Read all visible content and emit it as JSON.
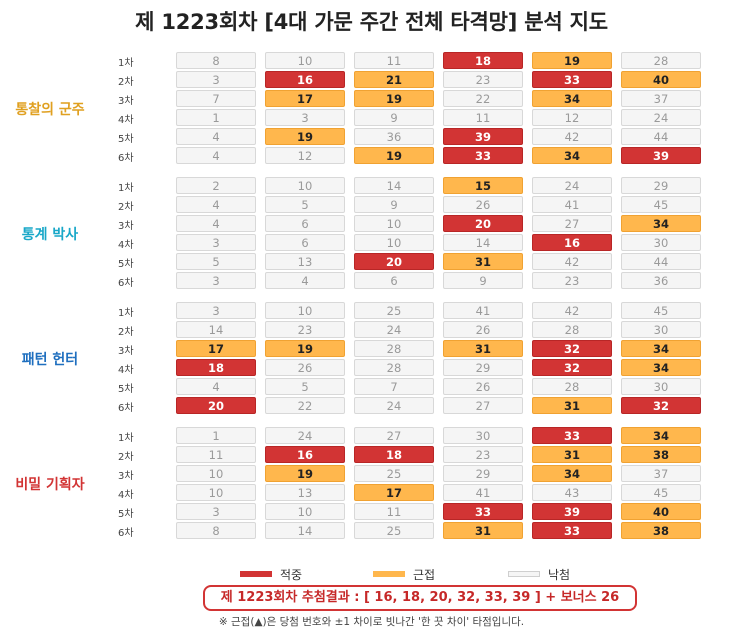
{
  "title": "제 1223회차 [4대 가문 주간 전체 타격망] 분석 지도",
  "colors": {
    "hit": "#d23434",
    "near": "#ffb74d",
    "miss": "#f5f5f5"
  },
  "groups": [
    {
      "name": "통찰의 군주",
      "color": "#e0a020",
      "rows": [
        {
          "label": "1차",
          "cells": [
            {
              "v": "8",
              "s": "miss"
            },
            {
              "v": "10",
              "s": "miss"
            },
            {
              "v": "11",
              "s": "miss"
            },
            {
              "v": "18",
              "s": "hit"
            },
            {
              "v": "19",
              "s": "near"
            },
            {
              "v": "28",
              "s": "miss"
            }
          ]
        },
        {
          "label": "2차",
          "cells": [
            {
              "v": "3",
              "s": "miss"
            },
            {
              "v": "16",
              "s": "hit"
            },
            {
              "v": "21",
              "s": "near"
            },
            {
              "v": "23",
              "s": "miss"
            },
            {
              "v": "33",
              "s": "hit"
            },
            {
              "v": "40",
              "s": "near"
            }
          ]
        },
        {
          "label": "3차",
          "cells": [
            {
              "v": "7",
              "s": "miss"
            },
            {
              "v": "17",
              "s": "near"
            },
            {
              "v": "19",
              "s": "near"
            },
            {
              "v": "22",
              "s": "miss"
            },
            {
              "v": "34",
              "s": "near"
            },
            {
              "v": "37",
              "s": "miss"
            }
          ]
        },
        {
          "label": "4차",
          "cells": [
            {
              "v": "1",
              "s": "miss"
            },
            {
              "v": "3",
              "s": "miss"
            },
            {
              "v": "9",
              "s": "miss"
            },
            {
              "v": "11",
              "s": "miss"
            },
            {
              "v": "12",
              "s": "miss"
            },
            {
              "v": "24",
              "s": "miss"
            }
          ]
        },
        {
          "label": "5차",
          "cells": [
            {
              "v": "4",
              "s": "miss"
            },
            {
              "v": "19",
              "s": "near"
            },
            {
              "v": "36",
              "s": "miss"
            },
            {
              "v": "39",
              "s": "hit"
            },
            {
              "v": "42",
              "s": "miss"
            },
            {
              "v": "44",
              "s": "miss"
            }
          ]
        },
        {
          "label": "6차",
          "cells": [
            {
              "v": "4",
              "s": "miss"
            },
            {
              "v": "12",
              "s": "miss"
            },
            {
              "v": "19",
              "s": "near"
            },
            {
              "v": "33",
              "s": "hit"
            },
            {
              "v": "34",
              "s": "near"
            },
            {
              "v": "39",
              "s": "hit"
            }
          ]
        }
      ]
    },
    {
      "name": "통계 박사",
      "color": "#18a7c8",
      "rows": [
        {
          "label": "1차",
          "cells": [
            {
              "v": "2",
              "s": "miss"
            },
            {
              "v": "10",
              "s": "miss"
            },
            {
              "v": "14",
              "s": "miss"
            },
            {
              "v": "15",
              "s": "near"
            },
            {
              "v": "24",
              "s": "miss"
            },
            {
              "v": "29",
              "s": "miss"
            }
          ]
        },
        {
          "label": "2차",
          "cells": [
            {
              "v": "4",
              "s": "miss"
            },
            {
              "v": "5",
              "s": "miss"
            },
            {
              "v": "9",
              "s": "miss"
            },
            {
              "v": "26",
              "s": "miss"
            },
            {
              "v": "41",
              "s": "miss"
            },
            {
              "v": "45",
              "s": "miss"
            }
          ]
        },
        {
          "label": "3차",
          "cells": [
            {
              "v": "4",
              "s": "miss"
            },
            {
              "v": "6",
              "s": "miss"
            },
            {
              "v": "10",
              "s": "miss"
            },
            {
              "v": "20",
              "s": "hit"
            },
            {
              "v": "27",
              "s": "miss"
            },
            {
              "v": "34",
              "s": "near"
            }
          ]
        },
        {
          "label": "4차",
          "cells": [
            {
              "v": "3",
              "s": "miss"
            },
            {
              "v": "6",
              "s": "miss"
            },
            {
              "v": "10",
              "s": "miss"
            },
            {
              "v": "14",
              "s": "miss"
            },
            {
              "v": "16",
              "s": "hit"
            },
            {
              "v": "30",
              "s": "miss"
            }
          ]
        },
        {
          "label": "5차",
          "cells": [
            {
              "v": "5",
              "s": "miss"
            },
            {
              "v": "13",
              "s": "miss"
            },
            {
              "v": "20",
              "s": "hit"
            },
            {
              "v": "31",
              "s": "near"
            },
            {
              "v": "42",
              "s": "miss"
            },
            {
              "v": "44",
              "s": "miss"
            }
          ]
        },
        {
          "label": "6차",
          "cells": [
            {
              "v": "3",
              "s": "miss"
            },
            {
              "v": "4",
              "s": "miss"
            },
            {
              "v": "6",
              "s": "miss"
            },
            {
              "v": "9",
              "s": "miss"
            },
            {
              "v": "23",
              "s": "miss"
            },
            {
              "v": "36",
              "s": "miss"
            }
          ]
        }
      ]
    },
    {
      "name": "패턴 헌터",
      "color": "#1f6fbf",
      "rows": [
        {
          "label": "1차",
          "cells": [
            {
              "v": "3",
              "s": "miss"
            },
            {
              "v": "10",
              "s": "miss"
            },
            {
              "v": "25",
              "s": "miss"
            },
            {
              "v": "41",
              "s": "miss"
            },
            {
              "v": "42",
              "s": "miss"
            },
            {
              "v": "45",
              "s": "miss"
            }
          ]
        },
        {
          "label": "2차",
          "cells": [
            {
              "v": "14",
              "s": "miss"
            },
            {
              "v": "23",
              "s": "miss"
            },
            {
              "v": "24",
              "s": "miss"
            },
            {
              "v": "26",
              "s": "miss"
            },
            {
              "v": "28",
              "s": "miss"
            },
            {
              "v": "30",
              "s": "miss"
            }
          ]
        },
        {
          "label": "3차",
          "cells": [
            {
              "v": "17",
              "s": "near"
            },
            {
              "v": "19",
              "s": "near"
            },
            {
              "v": "28",
              "s": "miss"
            },
            {
              "v": "31",
              "s": "near"
            },
            {
              "v": "32",
              "s": "hit"
            },
            {
              "v": "34",
              "s": "near"
            }
          ]
        },
        {
          "label": "4차",
          "cells": [
            {
              "v": "18",
              "s": "hit"
            },
            {
              "v": "26",
              "s": "miss"
            },
            {
              "v": "28",
              "s": "miss"
            },
            {
              "v": "29",
              "s": "miss"
            },
            {
              "v": "32",
              "s": "hit"
            },
            {
              "v": "34",
              "s": "near"
            }
          ]
        },
        {
          "label": "5차",
          "cells": [
            {
              "v": "4",
              "s": "miss"
            },
            {
              "v": "5",
              "s": "miss"
            },
            {
              "v": "7",
              "s": "miss"
            },
            {
              "v": "26",
              "s": "miss"
            },
            {
              "v": "28",
              "s": "miss"
            },
            {
              "v": "30",
              "s": "miss"
            }
          ]
        },
        {
          "label": "6차",
          "cells": [
            {
              "v": "20",
              "s": "hit"
            },
            {
              "v": "22",
              "s": "miss"
            },
            {
              "v": "24",
              "s": "miss"
            },
            {
              "v": "27",
              "s": "miss"
            },
            {
              "v": "31",
              "s": "near"
            },
            {
              "v": "32",
              "s": "hit"
            }
          ]
        }
      ]
    },
    {
      "name": "비밀 기획자",
      "color": "#d23434",
      "rows": [
        {
          "label": "1차",
          "cells": [
            {
              "v": "1",
              "s": "miss"
            },
            {
              "v": "24",
              "s": "miss"
            },
            {
              "v": "27",
              "s": "miss"
            },
            {
              "v": "30",
              "s": "miss"
            },
            {
              "v": "33",
              "s": "hit"
            },
            {
              "v": "34",
              "s": "near"
            }
          ]
        },
        {
          "label": "2차",
          "cells": [
            {
              "v": "11",
              "s": "miss"
            },
            {
              "v": "16",
              "s": "hit"
            },
            {
              "v": "18",
              "s": "hit"
            },
            {
              "v": "23",
              "s": "miss"
            },
            {
              "v": "31",
              "s": "near"
            },
            {
              "v": "38",
              "s": "near"
            }
          ]
        },
        {
          "label": "3차",
          "cells": [
            {
              "v": "10",
              "s": "miss"
            },
            {
              "v": "19",
              "s": "near"
            },
            {
              "v": "25",
              "s": "miss"
            },
            {
              "v": "29",
              "s": "miss"
            },
            {
              "v": "34",
              "s": "near"
            },
            {
              "v": "37",
              "s": "miss"
            }
          ]
        },
        {
          "label": "4차",
          "cells": [
            {
              "v": "10",
              "s": "miss"
            },
            {
              "v": "13",
              "s": "miss"
            },
            {
              "v": "17",
              "s": "near"
            },
            {
              "v": "41",
              "s": "miss"
            },
            {
              "v": "43",
              "s": "miss"
            },
            {
              "v": "45",
              "s": "miss"
            }
          ]
        },
        {
          "label": "5차",
          "cells": [
            {
              "v": "3",
              "s": "miss"
            },
            {
              "v": "10",
              "s": "miss"
            },
            {
              "v": "11",
              "s": "miss"
            },
            {
              "v": "33",
              "s": "hit"
            },
            {
              "v": "39",
              "s": "hit"
            },
            {
              "v": "40",
              "s": "near"
            }
          ]
        },
        {
          "label": "6차",
          "cells": [
            {
              "v": "8",
              "s": "miss"
            },
            {
              "v": "14",
              "s": "miss"
            },
            {
              "v": "25",
              "s": "miss"
            },
            {
              "v": "31",
              "s": "near"
            },
            {
              "v": "33",
              "s": "hit"
            },
            {
              "v": "38",
              "s": "near"
            }
          ]
        }
      ]
    }
  ],
  "legend": {
    "hit": "적중",
    "near": "근접",
    "miss": "낙첨"
  },
  "result": "제 1223회차 추첨결과 : [ 16, 18, 20, 32, 33, 39 ]  +  보너스 26",
  "note": "※ 근접(▲)은 당첨 번호와 ±1 차이로 빗나간 '한 끗 차이' 타점입니다."
}
